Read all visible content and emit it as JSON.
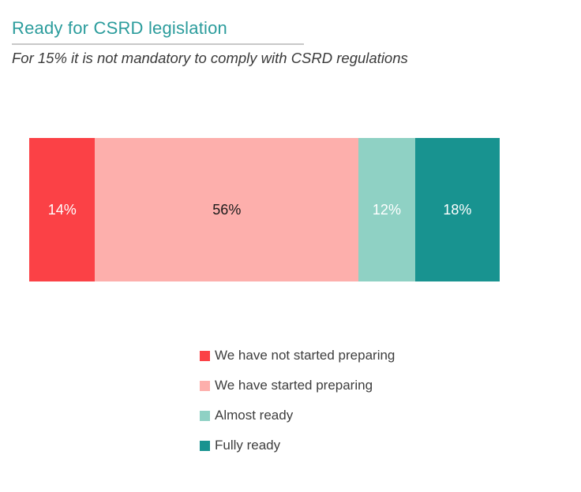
{
  "header": {
    "title": "Ready for CSRD legislation",
    "title_color": "#2B9C9C",
    "subtitle": "For 15% it is not mandatory to comply with CSRD regulations"
  },
  "chart_data": {
    "type": "bar",
    "variant": "horizontal-stacked-100percent",
    "title": "Ready for CSRD legislation",
    "subtitle": "For 15% it is not mandatory to comply with CSRD regulations",
    "categories": [
      "We have not started preparing",
      "We have started preparing",
      "Almost ready",
      "Fully ready"
    ],
    "values": [
      14,
      56,
      12,
      18
    ],
    "unit": "%",
    "xlim": [
      0,
      100
    ],
    "grid": false,
    "axes": "none",
    "bar_labels": "inside-center",
    "legend_position": "bottom-center",
    "segments": [
      {
        "label": "We have not started preparing",
        "value": 14,
        "display": "14%",
        "color": "#FB4146",
        "label_color": "#ffffff"
      },
      {
        "label": "We have started preparing",
        "value": 56,
        "display": "56%",
        "color": "#FDAFAC",
        "label_color": "#1a1a1a"
      },
      {
        "label": "Almost ready",
        "value": 12,
        "display": "12%",
        "color": "#8FD1C4",
        "label_color": "#ffffff"
      },
      {
        "label": "Fully ready",
        "value": 18,
        "display": "18%",
        "color": "#189390",
        "label_color": "#ffffff"
      }
    ]
  }
}
